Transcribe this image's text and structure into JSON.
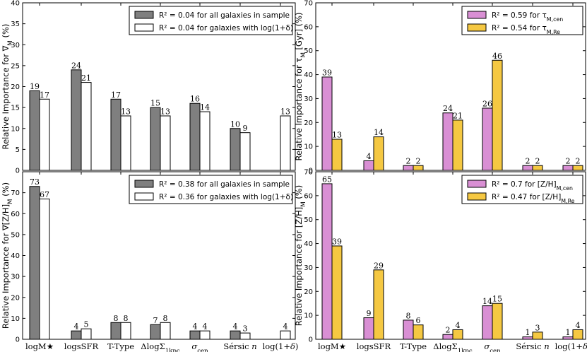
{
  "chart_data": [
    {
      "type": "bar",
      "ylabel": "Relative Importance for ∇_M (%)",
      "ylim": [
        0,
        40
      ],
      "yticks": [
        0,
        5,
        10,
        15,
        20,
        25,
        30,
        35,
        40
      ],
      "categories": [
        "logM★",
        "logsSFR",
        "T-Type",
        "ΔlogΣ1kpc",
        "σcen",
        "Sérsic n",
        "log(1+δ)"
      ],
      "series": [
        {
          "name": "R² = 0.04 for all galaxies in sample",
          "color": "#7f7f7f",
          "values": [
            19,
            24,
            17,
            15,
            16,
            10,
            null
          ]
        },
        {
          "name": "R² = 0.04 for galaxies with log(1+δ)",
          "color": "#ffffff",
          "values": [
            17,
            21,
            13,
            13,
            14,
            9,
            13
          ]
        }
      ],
      "legend_position": "top-right",
      "show_xticklabels": false
    },
    {
      "type": "bar",
      "ylabel": "Relative Importance for τ_M [Gyr] (%)",
      "ylim": [
        0,
        70
      ],
      "yticks": [
        0,
        10,
        20,
        30,
        40,
        50,
        60,
        70
      ],
      "categories": [
        "logM★",
        "logsSFR",
        "T-Type",
        "ΔlogΣ1kpc",
        "σcen",
        "Sérsic n",
        "log(1+δ)"
      ],
      "series": [
        {
          "name": "R² = 0.59 for τ_M,cen",
          "color": "#d98fd4",
          "values": [
            39,
            4,
            2,
            24,
            26,
            2,
            2
          ]
        },
        {
          "name": "R² = 0.54 for τ_M,Re",
          "color": "#f5c842",
          "values": [
            13,
            14,
            2,
            21,
            46,
            2,
            2
          ]
        }
      ],
      "legend_position": "top-right",
      "show_xticklabels": false
    },
    {
      "type": "bar",
      "ylabel": "Relative Importance for ∇[Z/H]_M (%)",
      "ylim": [
        0,
        80
      ],
      "yticks": [
        0,
        10,
        20,
        30,
        40,
        50,
        60,
        70
      ],
      "categories": [
        "logM★",
        "logsSFR",
        "T-Type",
        "ΔlogΣ1kpc",
        "σcen",
        "Sérsic n",
        "log(1+δ)"
      ],
      "series": [
        {
          "name": "R² = 0.38 for all galaxies in sample",
          "color": "#7f7f7f",
          "values": [
            73,
            4,
            8,
            7,
            4,
            4,
            null
          ]
        },
        {
          "name": "R² = 0.36 for galaxies with log(1+δ)",
          "color": "#ffffff",
          "values": [
            67,
            5,
            8,
            8,
            4,
            3,
            4
          ]
        }
      ],
      "legend_position": "top-right",
      "show_xticklabels": true
    },
    {
      "type": "bar",
      "ylabel": "Relative Importance for [Z/H]_M (%)",
      "ylim": [
        0,
        70
      ],
      "yticks": [
        0,
        10,
        20,
        30,
        40,
        50,
        60,
        70
      ],
      "categories": [
        "logM★",
        "logsSFR",
        "T-Type",
        "ΔlogΣ1kpc",
        "σcen",
        "Sérsic n",
        "log(1+δ)"
      ],
      "series": [
        {
          "name": "R² = 0.7 for [Z/H]_M,cen",
          "color": "#d98fd4",
          "values": [
            65,
            9,
            8,
            2,
            14,
            1,
            1
          ]
        },
        {
          "name": "R² = 0.47 for [Z/H]_M,Re",
          "color": "#f5c842",
          "values": [
            39,
            29,
            6,
            4,
            15,
            3,
            4
          ]
        }
      ],
      "legend_position": "top-right",
      "show_xticklabels": true
    }
  ]
}
